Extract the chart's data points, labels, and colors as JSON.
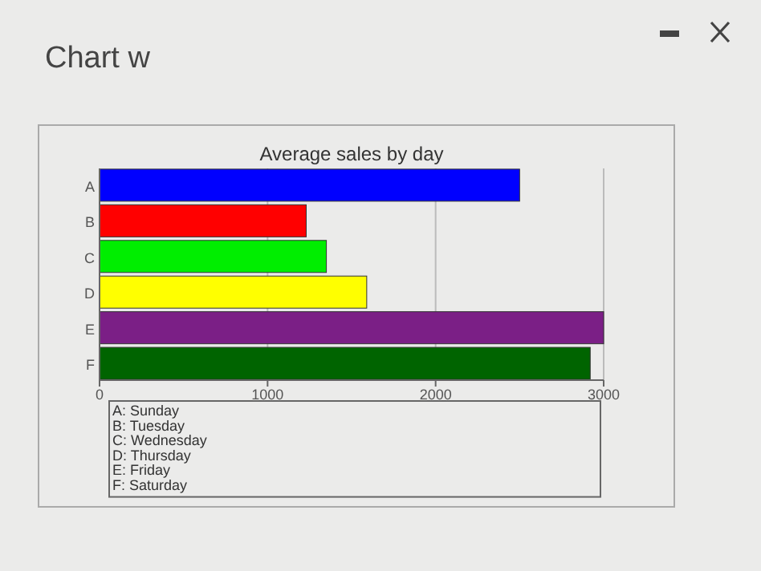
{
  "chart_data": {
    "type": "bar",
    "orientation": "horizontal",
    "title": "Average sales by day",
    "categories": [
      "A",
      "B",
      "C",
      "D",
      "E",
      "F"
    ],
    "values": [
      2500,
      1230,
      1350,
      1590,
      3000,
      2920
    ],
    "colors": [
      "#0000ff",
      "#ff0000",
      "#00ee00",
      "#ffff00",
      "#7b1f86",
      "#006400"
    ],
    "xlim": [
      0,
      3000
    ],
    "xticks": [
      0,
      1000,
      2000,
      3000
    ],
    "grid": "x",
    "annotations": [
      "Chart w",
      "A: Sunday",
      "B: Tuesday",
      "C: Wednesday",
      "D: Thursday",
      "E: Friday",
      "F: Saturday"
    ]
  }
}
